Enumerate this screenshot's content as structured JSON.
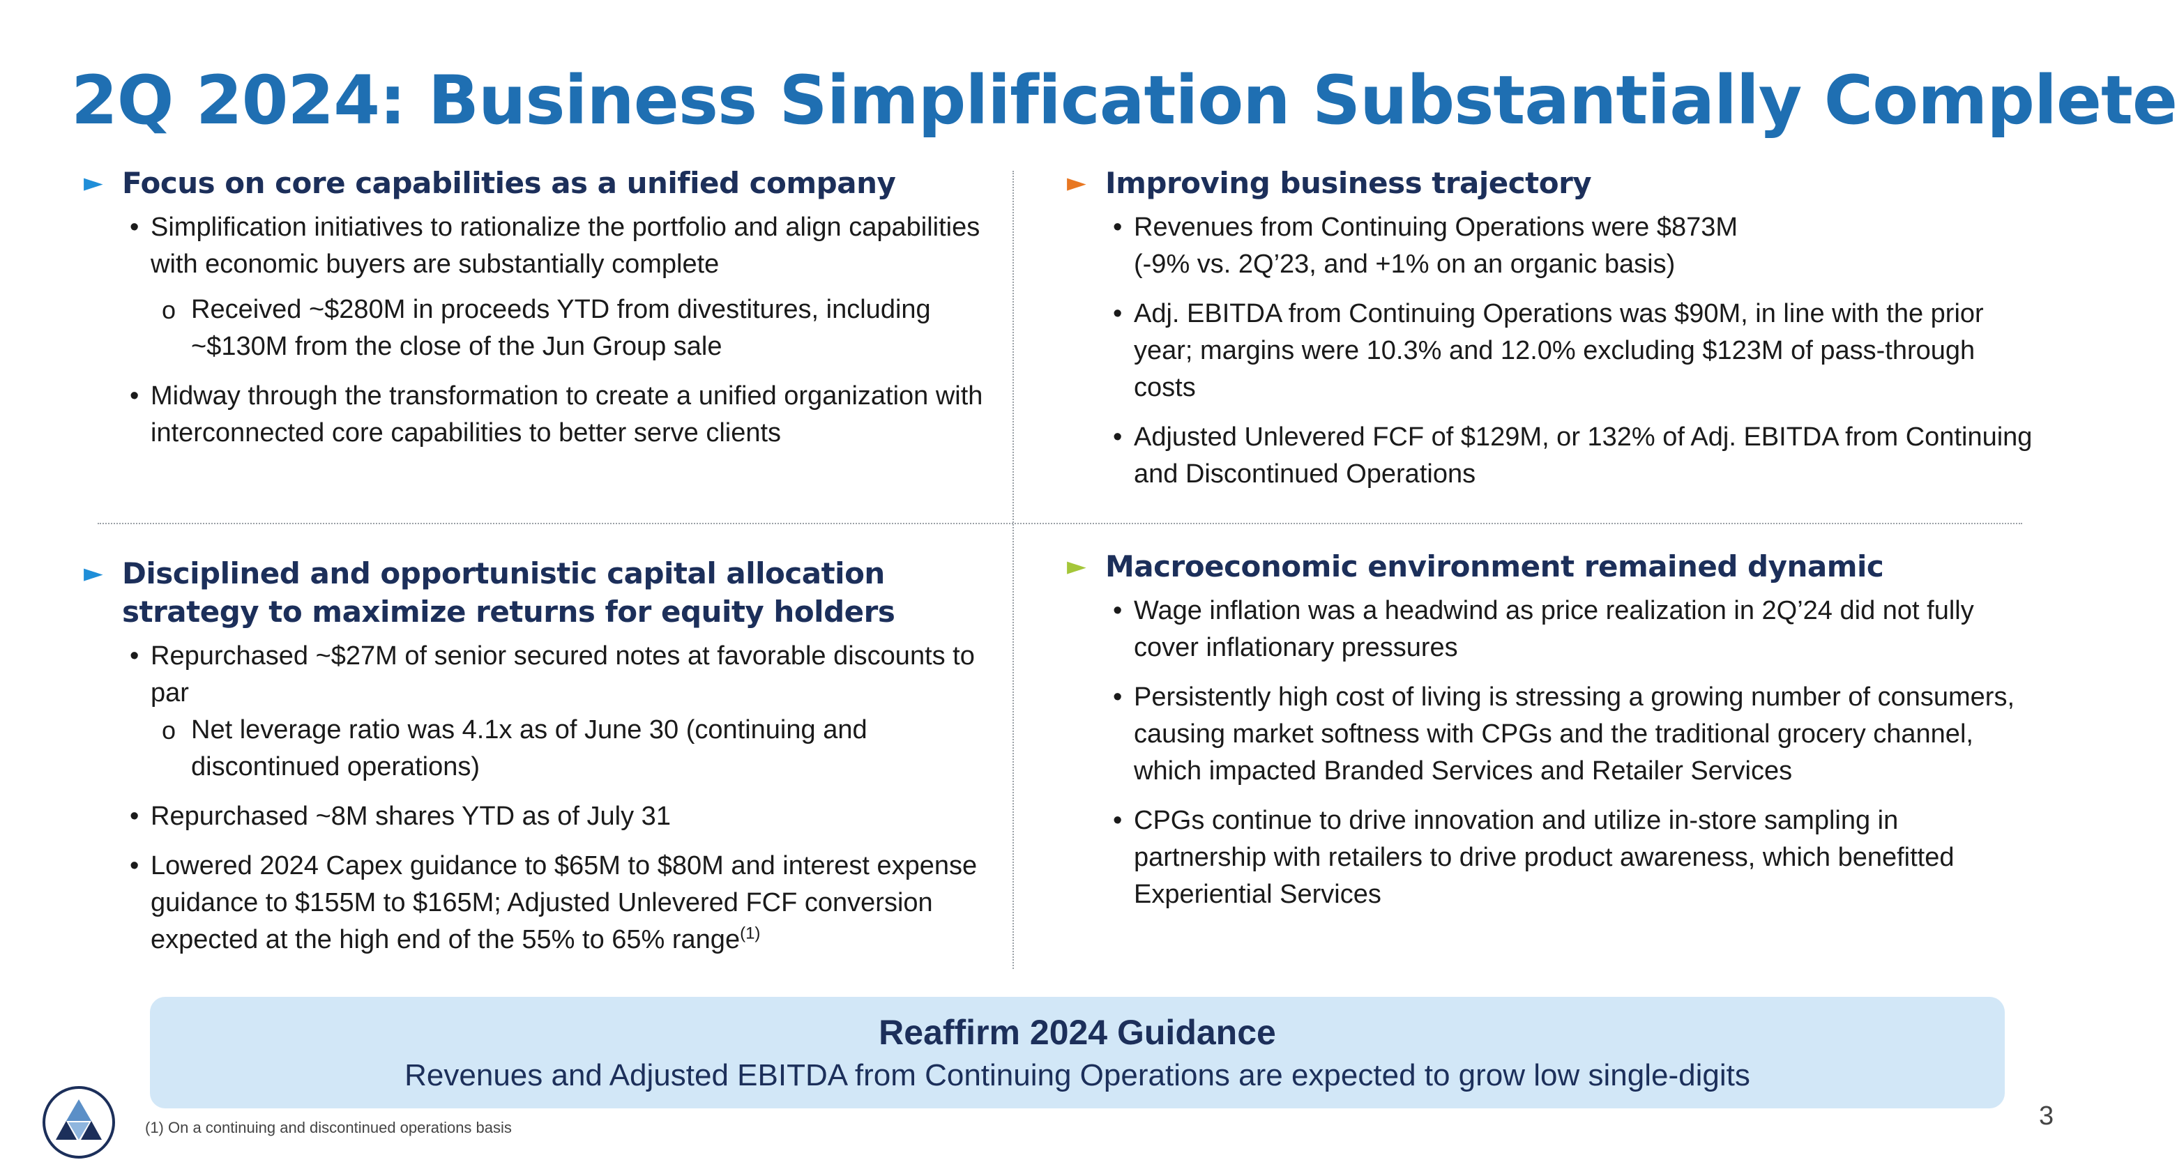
{
  "title": "2Q 2024: Business Simplification Substantially Complete",
  "colors": {
    "title": "#1f6fb2",
    "arrow_blue": "#1f8ed8",
    "arrow_orange": "#e87722",
    "arrow_green": "#a4c639",
    "box": "#d2e7f7"
  },
  "sections": {
    "top_left": {
      "heading": "Focus on core capabilities as a unified company",
      "bullets": [
        "Simplification initiatives to rationalize the portfolio and align capabilities with economic buyers are substantially complete",
        "Midway through the transformation to create a unified organization with interconnected core capabilities to better serve clients"
      ],
      "sub": [
        "Received ~$280M in proceeds YTD from divestitures, including ~$130M from the close of the Jun Group sale"
      ]
    },
    "top_right": {
      "heading": "Improving business trajectory",
      "bullets": [
        "Revenues from Continuing Operations were $873M",
        "(-9% vs. 2Q’23, and +1% on an organic basis)",
        "Adj. EBITDA from Continuing Operations was $90M, in line with the prior year; margins were 10.3% and 12.0% excluding $123M of pass-through costs",
        "Adjusted Unlevered FCF of $129M, or 132% of Adj. EBITDA from Continuing and Discontinued Operations"
      ]
    },
    "bottom_left": {
      "heading": "Disciplined and opportunistic capital allocation strategy to maximize returns for equity holders",
      "bullets": [
        "Repurchased ~$27M of senior secured notes at favorable discounts to par",
        "Repurchased ~8M shares YTD as of July 31",
        "Lowered 2024 Capex guidance to $65M to $80M and interest expense guidance to $155M to $165M; Adjusted Unlevered FCF conversion expected at the high end of the 55% to 65% range"
      ],
      "sub": [
        "Net leverage ratio was 4.1x as of June 30 (continuing and discontinued operations)"
      ],
      "superscript": "(1)"
    },
    "bottom_right": {
      "heading": "Macroeconomic environment remained dynamic",
      "bullets": [
        "Wage inflation was a headwind as price realization in 2Q’24 did not fully cover inflationary pressures",
        "Persistently high cost of living is stressing a growing number of consumers, causing market softness with CPGs and the traditional grocery channel, which impacted Branded Services and Retailer Services",
        "CPGs continue to drive innovation and utilize in-store sampling in partnership with retailers to drive product awareness, which benefitted Experiential Services"
      ]
    }
  },
  "glyphs": {
    "arrow": "►",
    "bullet": "•",
    "sub_bullet": "o"
  },
  "guidance": {
    "title": "Reaffirm 2024 Guidance",
    "subtitle": "Revenues and Adjusted EBITDA from Continuing Operations are expected to grow low single-digits"
  },
  "footnote": "(1) On a continuing and discontinued operations basis",
  "page_number": "3",
  "logo": "triangle-logo-icon"
}
